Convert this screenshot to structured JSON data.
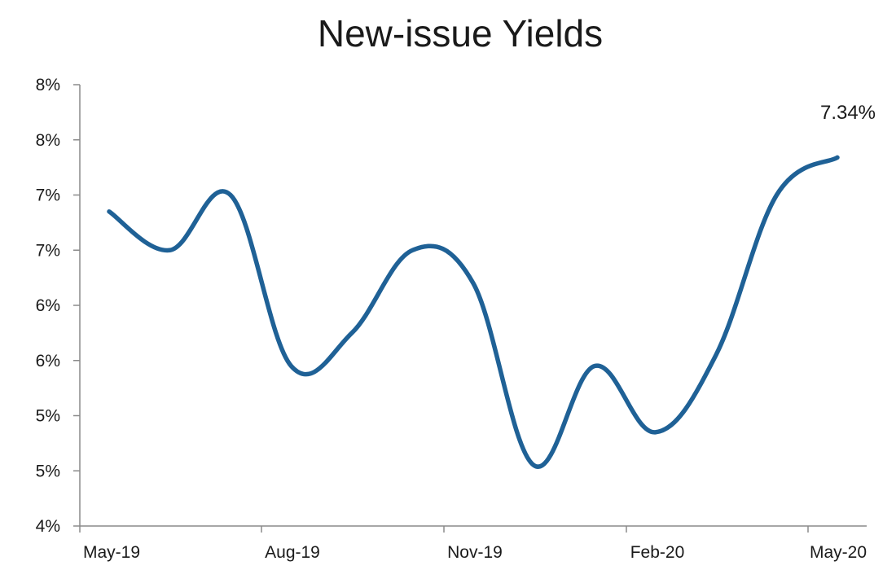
{
  "chart_data": {
    "type": "line",
    "title": "New-issue Yields",
    "xlabel": "",
    "ylabel": "",
    "x_tick_labels": [
      "May-19",
      "Aug-19",
      "Nov-19",
      "Feb-20",
      "May-20"
    ],
    "y_tick_labels": [
      "4%",
      "5%",
      "5%",
      "6%",
      "6%",
      "7%",
      "7%",
      "8%",
      "8%"
    ],
    "ylim": [
      4.0,
      8.0
    ],
    "grid": false,
    "legend": "none",
    "line_color": "#1f6196",
    "series": [
      {
        "x": [
          "May-19",
          "Jun-19",
          "Jul-19",
          "Aug-19",
          "Sep-19",
          "Oct-19",
          "Nov-19",
          "Dec-19",
          "Jan-20",
          "Feb-20",
          "Mar-20",
          "Apr-20",
          "May-20"
        ],
        "values": [
          6.85,
          6.5,
          7.0,
          5.45,
          5.75,
          6.5,
          6.2,
          4.55,
          5.45,
          4.85,
          5.55,
          7.0,
          7.34
        ]
      }
    ],
    "annotations": [
      {
        "text": "7.34%",
        "x": "May-20",
        "y": 7.34
      }
    ]
  }
}
